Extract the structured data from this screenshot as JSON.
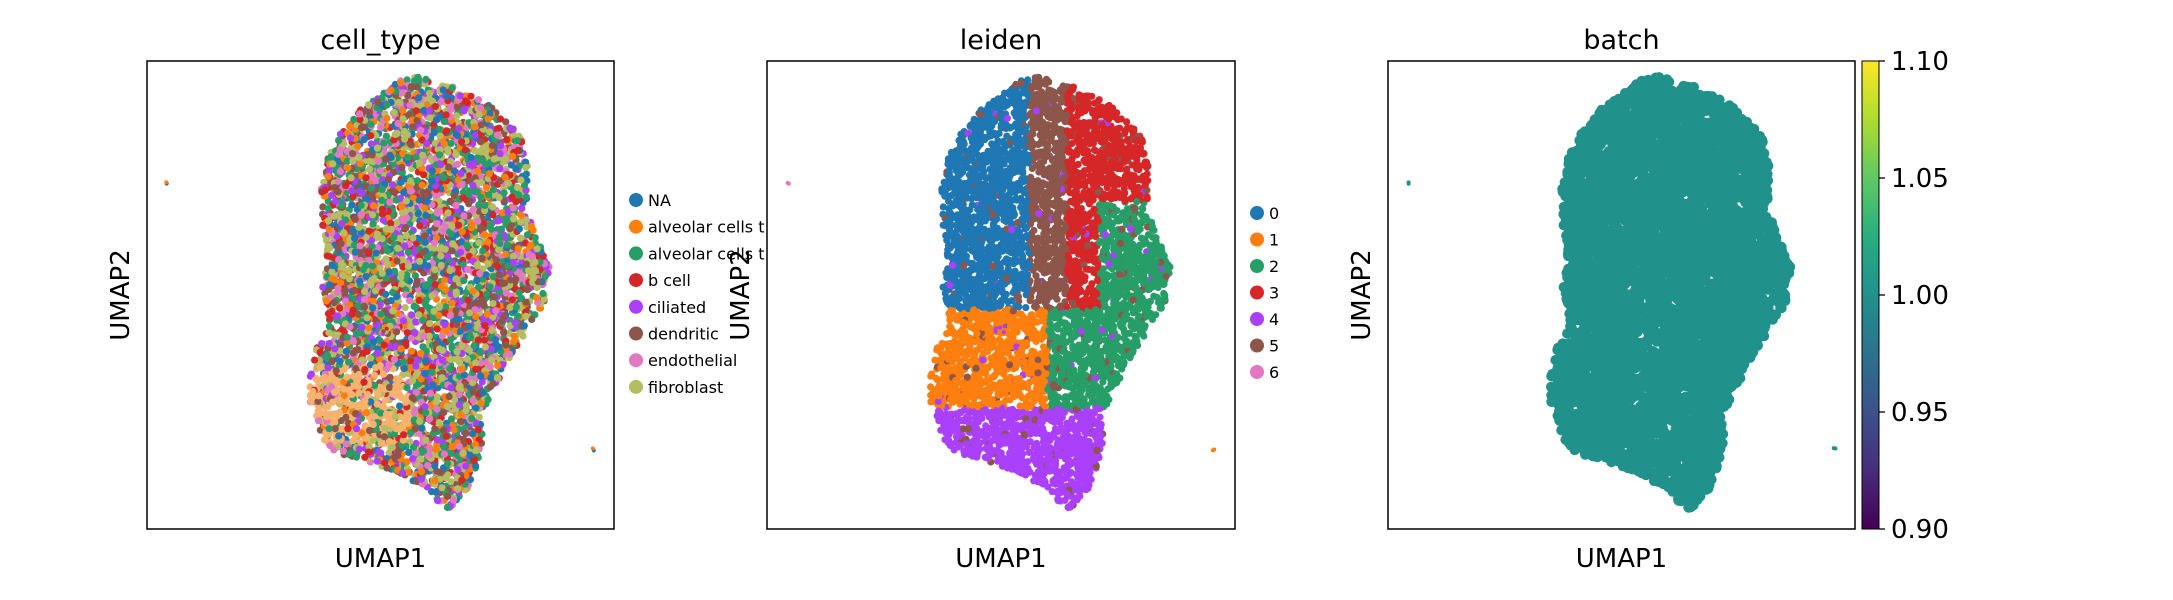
{
  "chart_data": [
    {
      "type": "scatter",
      "title": "cell_type",
      "xlabel": "UMAP1",
      "ylabel": "UMAP2",
      "grid": false,
      "ticks": false,
      "legend_position": "right",
      "legend": [
        {
          "label": "NA",
          "color": "#1f77b4"
        },
        {
          "label": "alveolar cells t",
          "color": "#ff7f0e"
        },
        {
          "label": "alveolar cells t",
          "color": "#279e68"
        },
        {
          "label": "b cell",
          "color": "#d62728"
        },
        {
          "label": "ciliated",
          "color": "#aa40fc"
        },
        {
          "label": "dendritic",
          "color": "#8c564b"
        },
        {
          "label": "endothelial",
          "color": "#e377c2"
        },
        {
          "label": "fibroblast",
          "color": "#b5bd61"
        }
      ],
      "coloring": "mixed"
    },
    {
      "type": "scatter",
      "title": "leiden",
      "xlabel": "UMAP1",
      "ylabel": "UMAP2",
      "grid": false,
      "ticks": false,
      "legend_position": "right",
      "legend": [
        {
          "label": "0",
          "color": "#1f77b4"
        },
        {
          "label": "1",
          "color": "#ff7f0e"
        },
        {
          "label": "2",
          "color": "#279e68"
        },
        {
          "label": "3",
          "color": "#d62728"
        },
        {
          "label": "4",
          "color": "#aa40fc"
        },
        {
          "label": "5",
          "color": "#8c564b"
        },
        {
          "label": "6",
          "color": "#e377c2"
        }
      ],
      "coloring": "clusters"
    },
    {
      "type": "scatter",
      "title": "batch",
      "xlabel": "UMAP1",
      "ylabel": "UMAP2",
      "grid": false,
      "ticks": false,
      "point_color": "#21918c",
      "coloring": "uniform",
      "colorbar": {
        "colormap": "viridis",
        "range": [
          0.9,
          1.1
        ],
        "ticks": [
          "1.10",
          "1.05",
          "1.00",
          "0.95",
          "0.90"
        ]
      }
    }
  ]
}
